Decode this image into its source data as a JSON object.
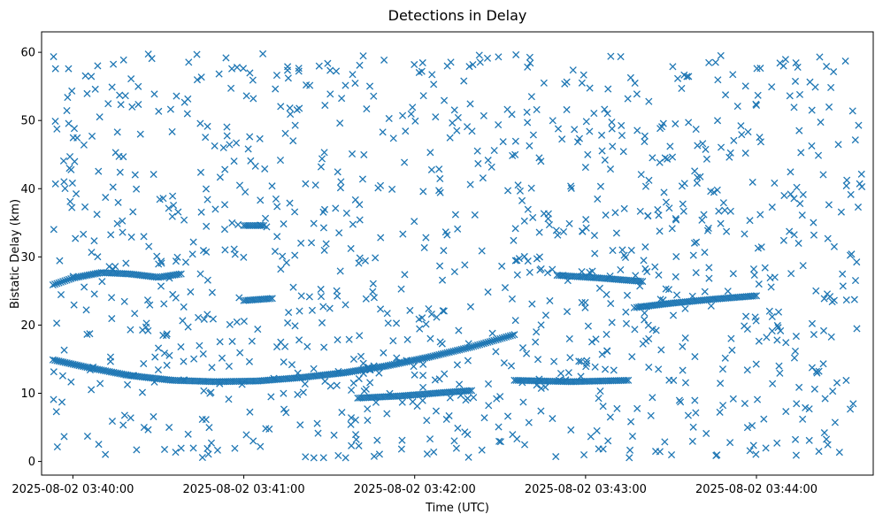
{
  "chart_data": {
    "type": "scatter",
    "title": "Detections in Delay",
    "xlabel": "Time (UTC)",
    "ylabel": "Bistatic Delay (km)",
    "x_axis_type": "time",
    "xlim": [
      "2025-08-02 03:39:49",
      "2025-08-02 03:44:41"
    ],
    "ylim": [
      -2,
      63
    ],
    "xticks": [
      "2025-08-02 03:40:00",
      "2025-08-02 03:41:00",
      "2025-08-02 03:42:00",
      "2025-08-02 03:43:00",
      "2025-08-02 03:44:00"
    ],
    "yticks": [
      0,
      10,
      20,
      30,
      40,
      50,
      60
    ],
    "grid": false,
    "marker": "x",
    "color": "#1f77b4",
    "tracks": [
      {
        "points": [
          [
            "2025-08-02 03:39:53",
            14.9
          ],
          [
            "2025-08-02 03:40:05",
            13.8
          ],
          [
            "2025-08-02 03:40:20",
            12.6
          ],
          [
            "2025-08-02 03:40:35",
            11.9
          ],
          [
            "2025-08-02 03:40:50",
            11.7
          ],
          [
            "2025-08-02 03:41:05",
            11.8
          ],
          [
            "2025-08-02 03:41:20",
            12.3
          ],
          [
            "2025-08-02 03:41:35",
            13.0
          ],
          [
            "2025-08-02 03:41:50",
            14.0
          ],
          [
            "2025-08-02 03:42:05",
            15.3
          ],
          [
            "2025-08-02 03:42:20",
            16.8
          ],
          [
            "2025-08-02 03:42:35",
            18.6
          ]
        ]
      },
      {
        "points": [
          [
            "2025-08-02 03:39:53",
            25.9
          ],
          [
            "2025-08-02 03:40:00",
            26.9
          ],
          [
            "2025-08-02 03:40:10",
            27.7
          ],
          [
            "2025-08-02 03:40:20",
            27.5
          ],
          [
            "2025-08-02 03:40:30",
            27.0
          ],
          [
            "2025-08-02 03:40:38",
            27.5
          ]
        ]
      },
      {
        "points": [
          [
            "2025-08-02 03:43:18",
            22.6
          ],
          [
            "2025-08-02 03:43:30",
            23.2
          ],
          [
            "2025-08-02 03:43:45",
            23.8
          ],
          [
            "2025-08-02 03:44:00",
            24.3
          ]
        ]
      },
      {
        "points": [
          [
            "2025-08-02 03:42:35",
            11.9
          ],
          [
            "2025-08-02 03:42:55",
            11.7
          ],
          [
            "2025-08-02 03:43:15",
            11.9
          ]
        ]
      },
      {
        "points": [
          [
            "2025-08-02 03:41:40",
            9.3
          ],
          [
            "2025-08-02 03:41:55",
            9.6
          ],
          [
            "2025-08-02 03:42:10",
            10.1
          ],
          [
            "2025-08-02 03:42:20",
            10.4
          ]
        ]
      },
      {
        "points": [
          [
            "2025-08-02 03:42:50",
            27.3
          ],
          [
            "2025-08-02 03:43:05",
            26.9
          ],
          [
            "2025-08-02 03:43:20",
            26.4
          ]
        ]
      },
      {
        "points": [
          [
            "2025-08-02 03:41:00",
            23.6
          ],
          [
            "2025-08-02 03:41:10",
            23.9
          ]
        ]
      },
      {
        "points": [
          [
            "2025-08-02 03:41:00",
            34.6
          ],
          [
            "2025-08-02 03:41:07",
            34.6
          ]
        ]
      }
    ],
    "clutter": {
      "x_range": [
        "2025-08-02 03:39:53",
        "2025-08-02 03:44:38"
      ],
      "y_range": [
        0.5,
        59.8
      ],
      "approx_count": 1100
    }
  }
}
